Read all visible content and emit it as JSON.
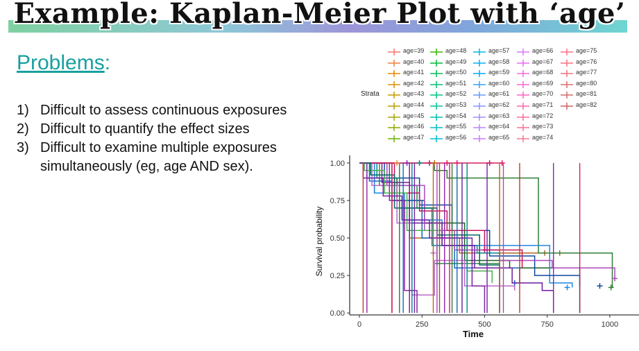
{
  "slide": {
    "title": "Example: Kaplan-Meier Plot with ‘age’",
    "problems_heading": "Problems",
    "problems_colon": ":",
    "items": [
      {
        "num": "1)",
        "text": "Difficult to assess continuous exposures"
      },
      {
        "num": "2)",
        "text": "Difficult to quantify the effect sizes"
      },
      {
        "num": "3)",
        "text": "Difficult to examine multiple exposures simultaneously (eg, age AND sex)."
      }
    ]
  },
  "legend": {
    "title": "Strata",
    "entries": [
      {
        "label": "age=39",
        "color": "#f8766d"
      },
      {
        "label": "age=40",
        "color": "#f07e40"
      },
      {
        "label": "age=41",
        "color": "#e58700"
      },
      {
        "label": "age=42",
        "color": "#d89000"
      },
      {
        "label": "age=43",
        "color": "#c99800"
      },
      {
        "label": "age=44",
        "color": "#b99e00"
      },
      {
        "label": "age=45",
        "color": "#a3a500"
      },
      {
        "label": "age=46",
        "color": "#8bab00"
      },
      {
        "label": "age=47",
        "color": "#6bb100"
      },
      {
        "label": "age=48",
        "color": "#39b600"
      },
      {
        "label": "age=49",
        "color": "#00ba38"
      },
      {
        "label": "age=50",
        "color": "#00bc59"
      },
      {
        "label": "age=51",
        "color": "#00be70"
      },
      {
        "label": "age=52",
        "color": "#00c086"
      },
      {
        "label": "age=53",
        "color": "#00c19a"
      },
      {
        "label": "age=54",
        "color": "#00c0ad"
      },
      {
        "label": "age=55",
        "color": "#00bfc4"
      },
      {
        "label": "age=56",
        "color": "#00bcd8"
      },
      {
        "label": "age=57",
        "color": "#00b8e7"
      },
      {
        "label": "age=58",
        "color": "#00b0f6"
      },
      {
        "label": "age=59",
        "color": "#00a9ff"
      },
      {
        "label": "age=60",
        "color": "#35a2ff"
      },
      {
        "label": "age=61",
        "color": "#619cff"
      },
      {
        "label": "age=62",
        "color": "#8794ff"
      },
      {
        "label": "age=63",
        "color": "#9f8cff"
      },
      {
        "label": "age=64",
        "color": "#b983ff"
      },
      {
        "label": "age=65",
        "color": "#c77cff"
      },
      {
        "label": "age=66",
        "color": "#db72fb"
      },
      {
        "label": "age=67",
        "color": "#e76bf3"
      },
      {
        "label": "age=68",
        "color": "#f564e3"
      },
      {
        "label": "age=69",
        "color": "#fa62d4"
      },
      {
        "label": "age=70",
        "color": "#ff61c3"
      },
      {
        "label": "age=71",
        "color": "#ff63b0"
      },
      {
        "label": "age=72",
        "color": "#ff689f"
      },
      {
        "label": "age=73",
        "color": "#fd6f8e"
      },
      {
        "label": "age=74",
        "color": "#f9758d"
      },
      {
        "label": "age=75",
        "color": "#ff6d8a"
      },
      {
        "label": "age=76",
        "color": "#f5707f"
      },
      {
        "label": "age=77",
        "color": "#e8747a"
      },
      {
        "label": "age=80",
        "color": "#dd6e6e"
      },
      {
        "label": "age=81",
        "color": "#d46a6a"
      },
      {
        "label": "age=82",
        "color": "#cc6666"
      }
    ]
  },
  "chart_data": {
    "type": "line",
    "xlabel": "Time",
    "ylabel": "Survival probability",
    "xlim": [
      0,
      1000
    ],
    "ylim": [
      0,
      1
    ],
    "x_ticks": [
      0,
      250,
      500,
      750,
      1000
    ],
    "y_ticks": [
      0.0,
      0.25,
      0.5,
      0.75,
      1.0
    ],
    "y_tick_labels": [
      "0.00",
      "0.25",
      "0.50",
      "0.75",
      "1.00"
    ],
    "grid": false,
    "series": [
      {
        "color": "#c0392b",
        "steps": [
          [
            0,
            1
          ],
          [
            130,
            0
          ]
        ]
      },
      {
        "color": "#b5651d",
        "steps": [
          [
            0,
            1
          ],
          [
            60,
            0.8
          ],
          [
            200,
            0.5
          ],
          [
            400,
            0.4
          ],
          [
            800,
            0.4
          ]
        ],
        "censor": [
          [
            740,
            0.4
          ],
          [
            800,
            0.4
          ]
        ]
      },
      {
        "color": "#2e7d32",
        "steps": [
          [
            0,
            1
          ],
          [
            300,
            0.95
          ],
          [
            350,
            0.9
          ],
          [
            715,
            0.4
          ],
          [
            1010,
            0.17
          ]
        ],
        "censor": [
          [
            1005,
            0.17
          ]
        ]
      },
      {
        "color": "#1b5e20",
        "steps": [
          [
            0,
            1
          ],
          [
            30,
            0.9
          ],
          [
            150,
            0.75
          ],
          [
            260,
            0.6
          ],
          [
            420,
            0.35
          ],
          [
            600,
            0.3
          ],
          [
            880,
            0
          ]
        ]
      },
      {
        "color": "#2f8a4a",
        "steps": [
          [
            0,
            1
          ],
          [
            80,
            0.85
          ],
          [
            230,
            0.7
          ],
          [
            310,
            0.33
          ],
          [
            560,
            0.25
          ]
        ],
        "censor": [
          [
            310,
            0.33
          ]
        ]
      },
      {
        "color": "#1e88e5",
        "steps": [
          [
            0,
            1
          ],
          [
            60,
            0.8
          ],
          [
            180,
            0.62
          ],
          [
            330,
            0.45
          ],
          [
            760,
            0.2
          ],
          [
            850,
            0.17
          ]
        ],
        "censor": [
          [
            830,
            0.17
          ]
        ]
      },
      {
        "color": "#0d47a1",
        "steps": [
          [
            0,
            1
          ],
          [
            100,
            0.9
          ],
          [
            240,
            0.72
          ],
          [
            370,
            0.55
          ],
          [
            520,
            0.38
          ],
          [
            700,
            0.25
          ],
          [
            880,
            0.18
          ]
        ],
        "censor": [
          [
            960,
            0.18
          ]
        ]
      },
      {
        "color": "#1565c0",
        "steps": [
          [
            0,
            1
          ],
          [
            40,
            0.88
          ],
          [
            130,
            0.75
          ],
          [
            250,
            0.5
          ],
          [
            380,
            0.3
          ],
          [
            640,
            0.2
          ]
        ],
        "censor": [
          [
            620,
            0.2
          ]
        ]
      },
      {
        "color": "#00838f",
        "steps": [
          [
            0,
            1
          ],
          [
            70,
            0.9
          ],
          [
            160,
            0.7
          ],
          [
            290,
            0.45
          ],
          [
            470,
            0.4
          ],
          [
            560,
            0
          ]
        ]
      },
      {
        "color": "#6a1b9a",
        "steps": [
          [
            0,
            1
          ],
          [
            90,
            0.87
          ],
          [
            200,
            0.6
          ],
          [
            330,
            0.45
          ],
          [
            460,
            0.3
          ],
          [
            610,
            0.2
          ],
          [
            730,
            0.15
          ],
          [
            775,
            0
          ]
        ]
      },
      {
        "color": "#ab47bc",
        "steps": [
          [
            0,
            1
          ],
          [
            110,
            0.85
          ],
          [
            260,
            0.55
          ],
          [
            380,
            0.42
          ],
          [
            560,
            0.35
          ],
          [
            770,
            0.3
          ],
          [
            1020,
            0.23
          ]
        ],
        "censor": [
          [
            1020,
            0.23
          ]
        ]
      },
      {
        "color": "#ba68c8",
        "steps": [
          [
            0,
            1
          ],
          [
            50,
            0.85
          ],
          [
            150,
            0.6
          ],
          [
            210,
            0.12
          ],
          [
            300,
            0.35
          ],
          [
            420,
            0.18
          ],
          [
            620,
            0.15
          ]
        ],
        "censor": [
          [
            295,
            0.4
          ]
        ]
      },
      {
        "color": "#8e24aa",
        "steps": [
          [
            0,
            1
          ],
          [
            120,
            0.75
          ],
          [
            180,
            0.15
          ],
          [
            230,
            0
          ]
        ]
      },
      {
        "color": "#d81b60",
        "steps": [
          [
            0,
            1
          ],
          [
            570,
            1
          ]
        ],
        "censor": [
          [
            350,
            1
          ],
          [
            570,
            1
          ]
        ]
      },
      {
        "color": "#c2185b",
        "steps": [
          [
            0,
            1
          ],
          [
            140,
            0.8
          ],
          [
            240,
            0.68
          ],
          [
            350,
            0.55
          ],
          [
            500,
            0.42
          ],
          [
            650,
            0.3
          ]
        ],
        "censor": [
          [
            500,
            0.42
          ]
        ]
      },
      {
        "color": "#4caf50",
        "steps": [
          [
            0,
            1
          ],
          [
            20,
            0.95
          ],
          [
            100,
            0.8
          ],
          [
            190,
            0.55
          ],
          [
            320,
            0.5
          ],
          [
            430,
            0.28
          ],
          [
            530,
            0.2
          ]
        ]
      },
      {
        "color": "#00695c",
        "steps": [
          [
            0,
            1
          ],
          [
            45,
            0.92
          ],
          [
            140,
            0.7
          ],
          [
            310,
            0.52
          ],
          [
            480,
            0.32
          ],
          [
            560,
            0
          ]
        ]
      },
      {
        "color": "#7b1fa2",
        "steps": [
          [
            0,
            1
          ],
          [
            15,
            0.9
          ],
          [
            95,
            0.78
          ],
          [
            170,
            0.62
          ],
          [
            280,
            0.5
          ],
          [
            450,
            0.18
          ],
          [
            500,
            0
          ]
        ]
      }
    ],
    "vertical_drops_x": [
      15,
      30,
      130,
      160,
      175,
      200,
      210,
      220,
      295,
      310,
      320,
      340,
      360,
      370,
      390,
      410,
      430,
      510,
      560,
      575,
      640,
      775,
      880
    ]
  }
}
